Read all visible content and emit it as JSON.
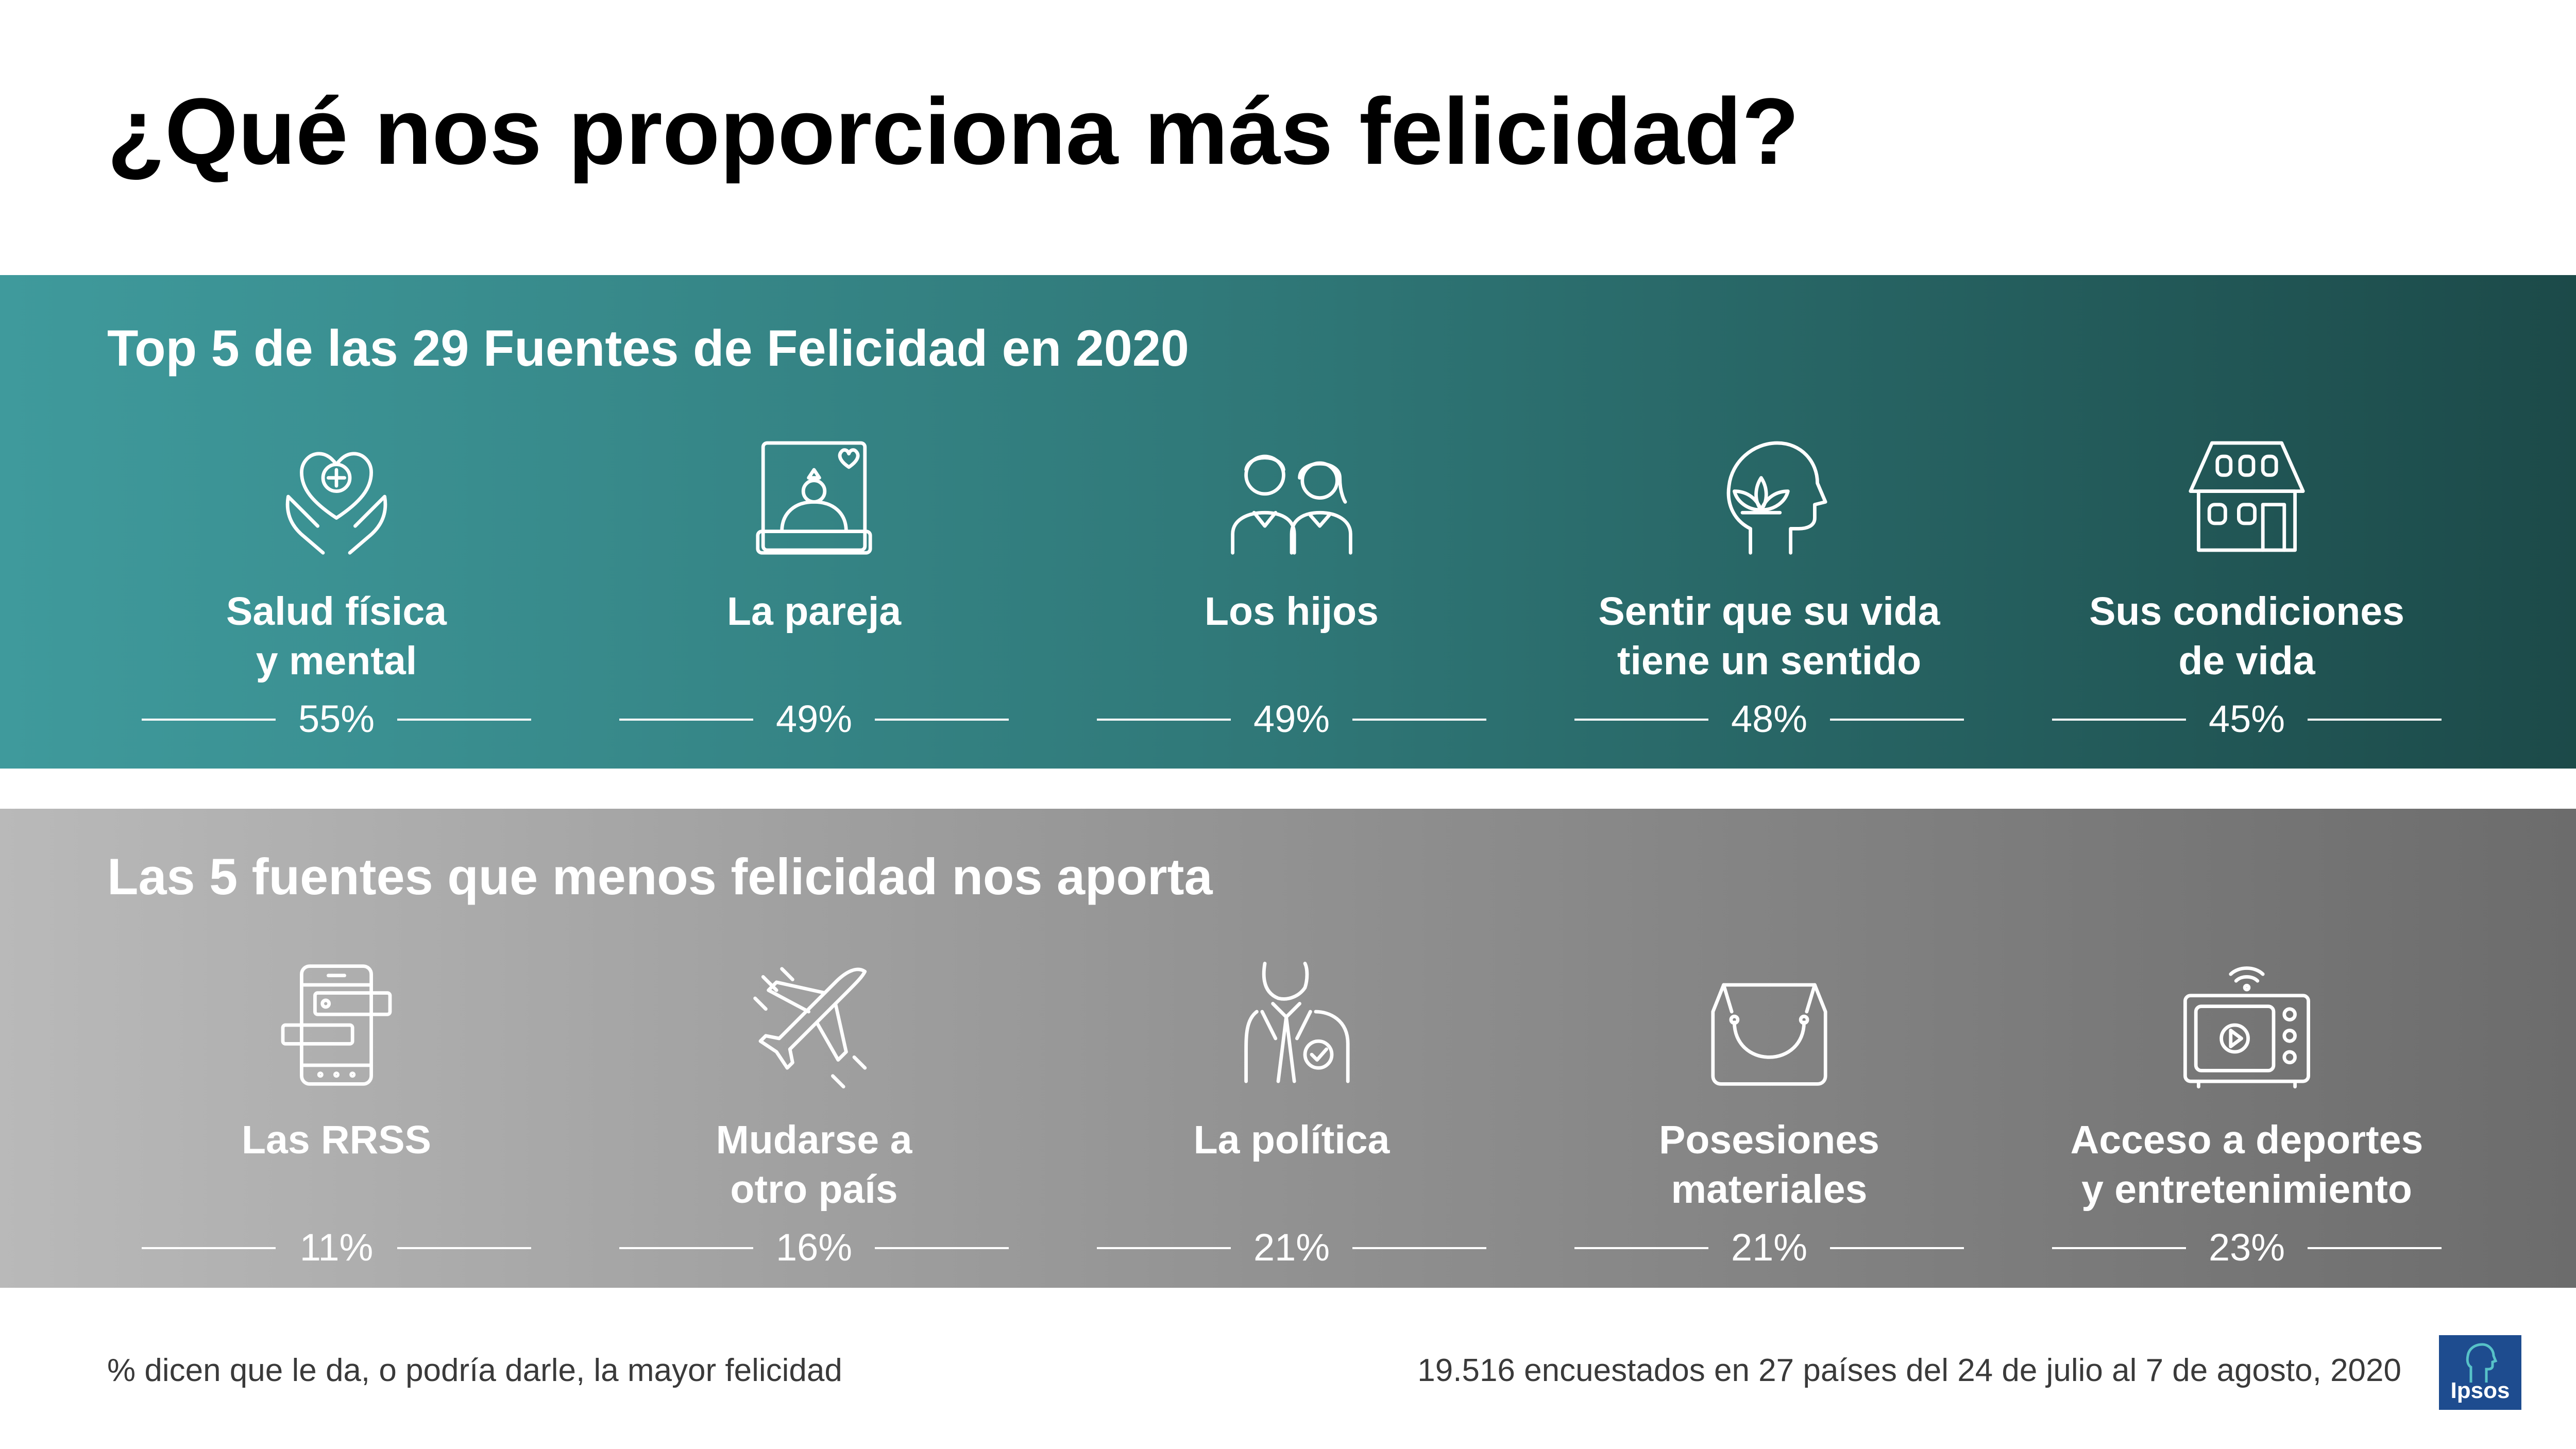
{
  "title": "¿Qué nos proporciona más felicidad?",
  "top_section": {
    "heading": "Top 5 de las 29 Fuentes de Felicidad en 2020",
    "items": [
      {
        "icon": "health-hands-heart-icon",
        "line1": "Salud física",
        "line2": "y mental",
        "percent": "55%"
      },
      {
        "icon": "ring-box-icon",
        "line1": "La pareja",
        "line2": "",
        "percent": "49%"
      },
      {
        "icon": "children-icon",
        "line1": "Los hijos",
        "line2": "",
        "percent": "49%"
      },
      {
        "icon": "mind-lotus-icon",
        "line1": "Sentir que su vida",
        "line2": "tiene un sentido",
        "percent": "48%"
      },
      {
        "icon": "house-icon",
        "line1": "Sus condiciones",
        "line2": "de vida",
        "percent": "45%"
      }
    ]
  },
  "bottom_section": {
    "heading": "Las 5 fuentes que menos felicidad nos aporta",
    "items": [
      {
        "icon": "smartphone-chat-icon",
        "line1": "Las RRSS",
        "line2": "",
        "percent": "11%"
      },
      {
        "icon": "airplane-icon",
        "line1": "Mudarse a",
        "line2": "otro país",
        "percent": "16%"
      },
      {
        "icon": "politician-icon",
        "line1": "La política",
        "line2": "",
        "percent": "21%"
      },
      {
        "icon": "shopping-bag-icon",
        "line1": "Posesiones",
        "line2": "materiales",
        "percent": "21%"
      },
      {
        "icon": "tv-icon",
        "line1": "Acceso a deportes",
        "line2": "y entretenimiento",
        "percent": "23%"
      }
    ]
  },
  "footer": {
    "left": "% dicen que le da, o podría darle, la mayor felicidad",
    "right": "19.516 encuestados en 27 países del 24 de julio al 7 de agosto, 2020"
  },
  "logo": {
    "text": "Ipsos",
    "color": "#1e4c8f"
  },
  "colors": {
    "top_band_start": "#3f9a9c",
    "top_band_end": "#1c4a49",
    "bottom_band_start": "#b9b9b9",
    "bottom_band_end": "#6c6c6c"
  }
}
